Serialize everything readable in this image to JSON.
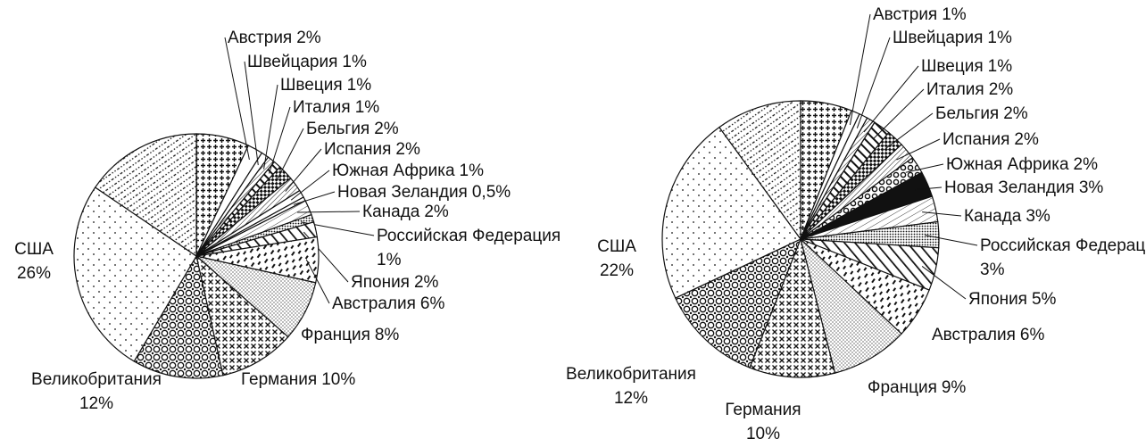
{
  "chart_data": [
    {
      "type": "pie",
      "categories": [
        null,
        "Австрия",
        "Швейцария",
        "Швеция",
        "Италия",
        "Бельгия",
        "Испания",
        "Южная Африка",
        "Новая Зеландия",
        "Канада",
        "Российская Федерация",
        "Япония",
        "Австралия",
        "Франция",
        "Германия",
        "Великобритания",
        "США",
        null
      ],
      "values": [
        7,
        2,
        1,
        1,
        1,
        2,
        2,
        1,
        0.5,
        2,
        1,
        2,
        6,
        8,
        10,
        12,
        26,
        15.5
      ],
      "value_labels": [
        null,
        "2%",
        "1%",
        "1%",
        "1%",
        "2%",
        "2%",
        "1%",
        "0,5%",
        "2%",
        "1%",
        "2%",
        "6%",
        "8%",
        "10%",
        "12%",
        "26%",
        null
      ]
    },
    {
      "type": "pie",
      "categories": [
        null,
        "Австрия",
        "Швейцария",
        "Швеция",
        "Италия",
        "Бельгия",
        "Испания",
        "Южная Африка",
        "Новая Зеландия",
        "Канада",
        "Российская Федерация",
        "Япония",
        "Австралия",
        "Франция",
        "Германия",
        "Великобритания",
        "США",
        null
      ],
      "values": [
        6,
        1,
        1,
        1,
        2,
        2,
        2,
        2,
        3,
        3,
        3,
        5,
        6,
        9,
        10,
        12,
        22,
        10
      ],
      "value_labels": [
        null,
        "1%",
        "1%",
        "1%",
        "2%",
        "2%",
        "2%",
        "2%",
        "3%",
        "3%",
        "3%",
        "5%",
        "6%",
        "9%",
        "10%",
        "12%",
        "22%",
        null
      ]
    }
  ]
}
